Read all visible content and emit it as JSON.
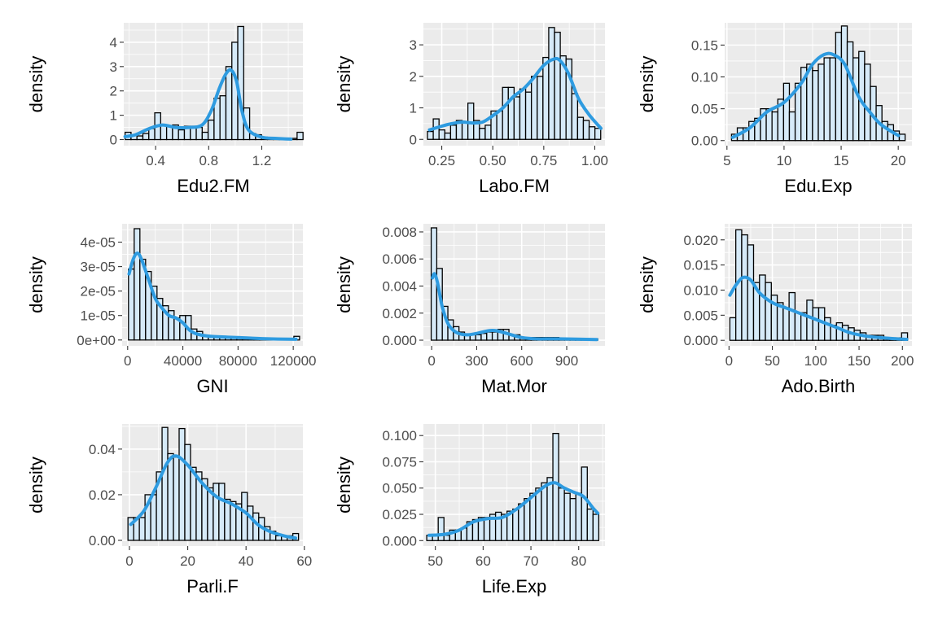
{
  "chart_data": [
    {
      "type": "histogram",
      "xlabel": "Edu2.FM",
      "ylabel": "density",
      "xlim": [
        0.16,
        1.51
      ],
      "ylim": [
        -0.25,
        4.8
      ],
      "xticks": [
        0.4,
        0.8,
        1.2
      ],
      "xtick_labels": [
        "0.4",
        "0.8",
        "1.2"
      ],
      "yticks": [
        0,
        1,
        2,
        3,
        4
      ],
      "ytick_labels": [
        "0",
        "1",
        "2",
        "3",
        "4"
      ],
      "bin_start": 0.17,
      "bin_width": 0.0447,
      "bin_densities": [
        0.3,
        0.2,
        0.15,
        0.25,
        0.45,
        1.1,
        0.6,
        0.55,
        0.6,
        0.4,
        0.55,
        0.55,
        0.5,
        0.3,
        0.8,
        1.7,
        1.8,
        3.0,
        4.0,
        4.65,
        1.3,
        0.25,
        0.2,
        0.1,
        0.05,
        0.05,
        0.05,
        0.05,
        0.05,
        0.3
      ],
      "density_curve": [
        [
          0.17,
          0.12
        ],
        [
          0.25,
          0.2
        ],
        [
          0.35,
          0.45
        ],
        [
          0.45,
          0.6
        ],
        [
          0.55,
          0.5
        ],
        [
          0.65,
          0.5
        ],
        [
          0.75,
          0.6
        ],
        [
          0.82,
          1.2
        ],
        [
          0.88,
          2.1
        ],
        [
          0.93,
          2.7
        ],
        [
          0.97,
          2.85
        ],
        [
          1.01,
          2.4
        ],
        [
          1.05,
          1.2
        ],
        [
          1.1,
          0.4
        ],
        [
          1.2,
          0.1
        ],
        [
          1.3,
          0.05
        ],
        [
          1.42,
          0.02
        ]
      ]
    },
    {
      "type": "histogram",
      "xlabel": "Labo.FM",
      "ylabel": "density",
      "xlim": [
        0.16,
        1.05
      ],
      "ylim": [
        -0.2,
        3.7
      ],
      "xticks": [
        0.25,
        0.5,
        0.75,
        1.0
      ],
      "xtick_labels": [
        "0.25",
        "0.50",
        "0.75",
        "1.00"
      ],
      "yticks": [
        0,
        1,
        2,
        3
      ],
      "ytick_labels": [
        "0",
        "1",
        "2",
        "3"
      ],
      "bin_start": 0.18,
      "bin_width": 0.0283,
      "bin_densities": [
        0.25,
        0.65,
        0.3,
        0.2,
        0.45,
        0.6,
        0.55,
        1.15,
        0.6,
        0.35,
        0.45,
        0.9,
        0.9,
        1.65,
        1.65,
        1.35,
        1.6,
        1.5,
        2.0,
        2.0,
        2.6,
        3.55,
        3.4,
        2.65,
        2.55,
        1.45,
        0.7,
        0.6,
        0.4,
        0.35
      ],
      "density_curve": [
        [
          0.19,
          0.3
        ],
        [
          0.25,
          0.42
        ],
        [
          0.3,
          0.5
        ],
        [
          0.35,
          0.55
        ],
        [
          0.4,
          0.52
        ],
        [
          0.45,
          0.55
        ],
        [
          0.5,
          0.75
        ],
        [
          0.55,
          1.0
        ],
        [
          0.6,
          1.35
        ],
        [
          0.65,
          1.6
        ],
        [
          0.7,
          1.95
        ],
        [
          0.75,
          2.35
        ],
        [
          0.8,
          2.55
        ],
        [
          0.83,
          2.5
        ],
        [
          0.87,
          2.1
        ],
        [
          0.92,
          1.3
        ],
        [
          0.97,
          0.8
        ],
        [
          1.03,
          0.35
        ]
      ]
    },
    {
      "type": "histogram",
      "xlabel": "Edu.Exp",
      "ylabel": "density",
      "xlim": [
        4.8,
        21.2
      ],
      "ylim": [
        -0.008,
        0.185
      ],
      "xticks": [
        5,
        10,
        15,
        20
      ],
      "xtick_labels": [
        "5",
        "10",
        "15",
        "20"
      ],
      "yticks": [
        0,
        0.05,
        0.1,
        0.15
      ],
      "ytick_labels": [
        "0.00",
        "0.05",
        "0.10",
        "0.15"
      ],
      "bin_start": 5.4,
      "bin_width": 0.5067,
      "bin_densities": [
        0.01,
        0.02,
        0.02,
        0.03,
        0.035,
        0.05,
        0.05,
        0.045,
        0.065,
        0.09,
        0.045,
        0.09,
        0.115,
        0.12,
        0.11,
        0.12,
        0.13,
        0.13,
        0.17,
        0.18,
        0.155,
        0.13,
        0.14,
        0.12,
        0.085,
        0.055,
        0.03,
        0.025,
        0.015,
        0.01
      ],
      "density_curve": [
        [
          5.5,
          0.005
        ],
        [
          7,
          0.02
        ],
        [
          8.5,
          0.045
        ],
        [
          10,
          0.06
        ],
        [
          11.5,
          0.09
        ],
        [
          12.5,
          0.12
        ],
        [
          13.5,
          0.135
        ],
        [
          14.3,
          0.135
        ],
        [
          15.3,
          0.12
        ],
        [
          16.5,
          0.07
        ],
        [
          17.5,
          0.045
        ],
        [
          18.5,
          0.025
        ],
        [
          20,
          0.008
        ]
      ]
    },
    {
      "type": "histogram",
      "xlabel": "GNI",
      "ylabel": "density",
      "xlim": [
        -4000,
        127000
      ],
      "ylim": [
        -2.4e-06,
        4.75e-05
      ],
      "xticks": [
        0,
        40000,
        80000,
        120000
      ],
      "xtick_labels": [
        "0",
        "40000",
        "80000",
        "120000"
      ],
      "yticks": [
        0,
        1e-05,
        2e-05,
        3e-05,
        4e-05
      ],
      "ytick_labels": [
        "0e+00",
        "1e-05",
        "2e-05",
        "3e-05",
        "4e-05"
      ],
      "bin_start": 600,
      "bin_width": 4133,
      "bin_densities": [
        2.9e-05,
        4.55e-05,
        3.3e-05,
        2.8e-05,
        2.2e-05,
        1.7e-05,
        1.4e-05,
        1.2e-05,
        9e-06,
        1e-05,
        1e-05,
        4.5e-06,
        3.5e-06,
        2e-06,
        1.5e-06,
        1.5e-06,
        1e-06,
        1e-06,
        1e-06,
        1e-06,
        5e-07,
        5e-07,
        5e-07,
        5e-07,
        5e-07,
        5e-07,
        5e-07,
        5e-07,
        5e-07,
        1.5e-06
      ],
      "density_curve": [
        [
          1000,
          2.7e-05
        ],
        [
          4000,
          3.3e-05
        ],
        [
          7000,
          3.55e-05
        ],
        [
          10000,
          3.3e-05
        ],
        [
          15000,
          2.5e-05
        ],
        [
          20000,
          1.7e-05
        ],
        [
          25000,
          1.3e-05
        ],
        [
          30000,
          1e-05
        ],
        [
          35000,
          9e-06
        ],
        [
          40000,
          7e-06
        ],
        [
          45000,
          4e-06
        ],
        [
          50000,
          2.5e-06
        ],
        [
          60000,
          1.5e-06
        ],
        [
          80000,
          1e-06
        ],
        [
          100000,
          5e-07
        ],
        [
          122000,
          3e-07
        ]
      ]
    },
    {
      "type": "histogram",
      "xlabel": "Mat.Mor",
      "ylabel": "density",
      "xlim": [
        -55,
        1155
      ],
      "ylim": [
        -0.00042,
        0.0086
      ],
      "xticks": [
        0,
        300,
        600,
        900
      ],
      "xtick_labels": [
        "0",
        "300",
        "600",
        "900"
      ],
      "yticks": [
        0,
        0.002,
        0.004,
        0.006,
        0.008
      ],
      "ytick_labels": [
        "0.000",
        "0.002",
        "0.004",
        "0.006",
        "0.008"
      ],
      "bin_start": -3,
      "bin_width": 37,
      "bin_densities": [
        0.0083,
        0.0053,
        0.0025,
        0.0015,
        0.001,
        0.0006,
        0.0004,
        0.0004,
        0.0004,
        0.0005,
        0.0006,
        0.0006,
        0.0008,
        0.0008,
        0.0004,
        0.0004,
        0.0002,
        0.0002,
        0.0002,
        0.0002,
        0.0002,
        0.0002,
        0.0002,
        0.0001,
        0.0001,
        0.0001,
        0.0001,
        0.0001,
        0.0001,
        0.0001
      ],
      "density_curve": [
        [
          5,
          0.0046
        ],
        [
          20,
          0.0049
        ],
        [
          40,
          0.0042
        ],
        [
          70,
          0.0025
        ],
        [
          110,
          0.0012
        ],
        [
          160,
          0.0006
        ],
        [
          230,
          0.0004
        ],
        [
          300,
          0.0005
        ],
        [
          380,
          0.0007
        ],
        [
          430,
          0.0007
        ],
        [
          500,
          0.0005
        ],
        [
          600,
          0.0002
        ],
        [
          700,
          0.0001
        ],
        [
          850,
          0.0001
        ],
        [
          1100,
          5e-05
        ]
      ]
    },
    {
      "type": "histogram",
      "xlabel": "Ado.Birth",
      "ylabel": "density",
      "xlim": [
        -5,
        211
      ],
      "ylim": [
        -0.0011,
        0.0232
      ],
      "xticks": [
        0,
        50,
        100,
        150,
        200
      ],
      "xtick_labels": [
        "0",
        "50",
        "100",
        "150",
        "200"
      ],
      "yticks": [
        0,
        0.005,
        0.01,
        0.015,
        0.02
      ],
      "ytick_labels": [
        "0.000",
        "0.005",
        "0.010",
        "0.015",
        "0.020"
      ],
      "bin_start": 1,
      "bin_width": 6.83,
      "bin_densities": [
        0.0045,
        0.022,
        0.021,
        0.019,
        0.0115,
        0.013,
        0.0115,
        0.009,
        0.0075,
        0.0065,
        0.0095,
        0.0055,
        0.0055,
        0.008,
        0.0065,
        0.0065,
        0.0045,
        0.003,
        0.0035,
        0.003,
        0.0025,
        0.002,
        0.0015,
        0.001,
        0.001,
        0.001,
        0.0005,
        0.0005,
        0.0005,
        0.0015
      ],
      "density_curve": [
        [
          1,
          0.009
        ],
        [
          8,
          0.011
        ],
        [
          16,
          0.0125
        ],
        [
          25,
          0.012
        ],
        [
          35,
          0.0095
        ],
        [
          50,
          0.0075
        ],
        [
          65,
          0.0065
        ],
        [
          80,
          0.0055
        ],
        [
          95,
          0.0045
        ],
        [
          110,
          0.0035
        ],
        [
          125,
          0.0025
        ],
        [
          140,
          0.0015
        ],
        [
          160,
          0.0008
        ],
        [
          185,
          0.0004
        ],
        [
          205,
          0.0002
        ]
      ]
    },
    {
      "type": "histogram",
      "xlabel": "Parli.F",
      "ylabel": "density",
      "xlim": [
        -2.5,
        59.5
      ],
      "ylim": [
        -0.0025,
        0.051
      ],
      "xticks": [
        0,
        20,
        40,
        60
      ],
      "xtick_labels": [
        "0",
        "20",
        "40",
        "60"
      ],
      "yticks": [
        0,
        0.02,
        0.04
      ],
      "ytick_labels": [
        "0.00",
        "0.02",
        "0.04"
      ],
      "bin_start": -0.5,
      "bin_width": 1.95,
      "bin_densities": [
        0.01,
        0.01,
        0.01,
        0.02,
        0.02,
        0.03,
        0.0495,
        0.038,
        0.0365,
        0.049,
        0.042,
        0.032,
        0.03,
        0.027,
        0.023,
        0.025,
        0.025,
        0.018,
        0.017,
        0.016,
        0.021,
        0.015,
        0.012,
        0.01,
        0.006,
        0.004,
        0.002,
        0.002,
        0.002,
        0.003
      ],
      "density_curve": [
        [
          0.5,
          0.007
        ],
        [
          5,
          0.013
        ],
        [
          9,
          0.023
        ],
        [
          13,
          0.034
        ],
        [
          16,
          0.037
        ],
        [
          20,
          0.033
        ],
        [
          25,
          0.025
        ],
        [
          30,
          0.019
        ],
        [
          35,
          0.016
        ],
        [
          40,
          0.012
        ],
        [
          44,
          0.007
        ],
        [
          48,
          0.004
        ],
        [
          53,
          0.002
        ],
        [
          57,
          0.001
        ]
      ]
    },
    {
      "type": "histogram",
      "xlabel": "Life.Exp",
      "ylabel": "density",
      "xlim": [
        47.5,
        85.5
      ],
      "ylim": [
        -0.0052,
        0.111
      ],
      "xticks": [
        50,
        60,
        70,
        80
      ],
      "xtick_labels": [
        "50",
        "60",
        "70",
        "80"
      ],
      "yticks": [
        0,
        0.025,
        0.05,
        0.075,
        0.1
      ],
      "ytick_labels": [
        "0.000",
        "0.025",
        "0.050",
        "0.075",
        "0.100"
      ],
      "bin_start": 48.2,
      "bin_width": 1.2,
      "bin_densities": [
        0.005,
        0.005,
        0.022,
        0.005,
        0.01,
        0.01,
        0.012,
        0.018,
        0.02,
        0.022,
        0.022,
        0.025,
        0.027,
        0.025,
        0.028,
        0.03,
        0.035,
        0.04,
        0.045,
        0.05,
        0.055,
        0.06,
        0.102,
        0.05,
        0.045,
        0.04,
        0.045,
        0.07,
        0.03,
        0.025
      ],
      "density_curve": [
        [
          48.7,
          0.005
        ],
        [
          52,
          0.006
        ],
        [
          55,
          0.01
        ],
        [
          58,
          0.018
        ],
        [
          61,
          0.021
        ],
        [
          64,
          0.022
        ],
        [
          67,
          0.03
        ],
        [
          70,
          0.041
        ],
        [
          73,
          0.052
        ],
        [
          75,
          0.055
        ],
        [
          77,
          0.05
        ],
        [
          79,
          0.046
        ],
        [
          81,
          0.042
        ],
        [
          83,
          0.031
        ],
        [
          84,
          0.026
        ]
      ]
    }
  ]
}
